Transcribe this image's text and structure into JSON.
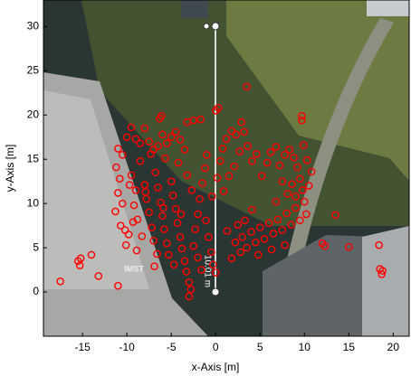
{
  "chart_data": {
    "type": "scatter",
    "x_label": "x-Axis [m]",
    "y_label": "y-Axis [m]",
    "annotations": [
      "10.01 m",
      "IMST"
    ],
    "xlim": [
      -19.4,
      21.8
    ],
    "ylim": [
      -5,
      33
    ],
    "xticks": [
      -15,
      -10,
      -5,
      0,
      5,
      10,
      15,
      20
    ],
    "yticks": [
      0,
      5,
      10,
      15,
      20,
      25,
      30
    ],
    "series": [
      {
        "color": "#ff0000",
        "x": [
          -11,
          -10.5,
          -10,
          -9.5,
          -9,
          -8.5,
          -8,
          -7.5,
          -7,
          -6.5,
          -6,
          -5.5,
          -5,
          -4.5,
          -4,
          -3.5,
          -11.2,
          -10.8,
          -11,
          -10.5,
          -11.3,
          -10.7,
          -10.2,
          -9.8,
          -9.5,
          -9,
          -9.2,
          -8.8,
          -8.5,
          -8,
          -7.8,
          -7.5,
          -7.2,
          -7,
          -6.8,
          -6.5,
          -6.2,
          -6,
          -5.8,
          -5.5,
          -5.3,
          -5,
          -4.8,
          -4.5,
          -4.3,
          -4,
          -3.8,
          -3.5,
          -3.3,
          -3,
          -2.8,
          -3,
          -2.5,
          -2.3,
          -2,
          -1.8,
          -1.5,
          -1.2,
          -1,
          -0.8,
          -0.5,
          -0.3,
          0,
          -2,
          -1.6,
          -2.7,
          -3.2,
          -4.2,
          -5.7,
          -7.3,
          -8.3,
          -6.6,
          -4.7,
          -3.9,
          -5.9,
          -7.9,
          -9.7,
          -1.1,
          -0.4,
          0.2,
          0.5,
          0.8,
          1.2,
          1.8,
          2.3,
          2.7,
          2.1,
          1.5,
          0.9,
          -6.9,
          -8.9,
          -10.1,
          -9.3,
          3,
          3.5,
          4,
          4.5,
          5,
          5.5,
          6,
          6.5,
          7,
          7.5,
          8,
          8.5,
          9,
          9.5,
          10,
          10.2,
          9.8,
          9.5,
          9.2,
          8.8,
          8.3,
          7.8,
          7.2,
          6.8,
          6.2,
          5.8,
          5.2,
          4.6,
          4.1,
          3.6,
          3.2,
          2.9,
          8.6,
          9,
          8.1,
          7.5,
          10.5,
          10.8,
          10.3,
          9.9,
          4.8,
          6.3,
          7.8,
          2.8,
          2.5,
          3.3,
          2.2,
          1.8,
          1.3,
          6.8,
          4.1,
          -17.5,
          -15.5,
          -15.3,
          -14,
          -13.2,
          -11,
          -15.2,
          12,
          12.3,
          13.5,
          15,
          18.4,
          18.7,
          18.5,
          18.8,
          3.5,
          9.7,
          9.7,
          0.3,
          0,
          -6.1,
          -6.3,
          -1.7,
          -2.5,
          -3.2
        ],
        "values": [
          16.2,
          15.5,
          17.5,
          18.6,
          17.3,
          16.8,
          18.5,
          17,
          16.1,
          16.5,
          17.8,
          16.8,
          17.5,
          18.1,
          17.2,
          16.1,
          14.1,
          12.8,
          11.2,
          10,
          9.1,
          7.5,
          7,
          6.5,
          13.2,
          11.5,
          9.8,
          8.2,
          14.8,
          12.1,
          10.5,
          9,
          7.3,
          5.8,
          13.5,
          11.8,
          10.1,
          8.6,
          7.1,
          5.5,
          4.2,
          12.5,
          10.9,
          9.4,
          7.8,
          6.2,
          4.9,
          3.5,
          2.3,
          1.1,
          0.3,
          -0.5,
          5.2,
          7.1,
          8.8,
          10.5,
          12.3,
          14,
          15.5,
          6.2,
          4.5,
          3.1,
          2.2,
          3.9,
          2.5,
          11.5,
          13.2,
          14.6,
          15.1,
          15.6,
          6.3,
          4.3,
          3.1,
          8.8,
          9.5,
          11.3,
          12.1,
          8.1,
          10.8,
          12.9,
          14.8,
          16.2,
          17.3,
          18.2,
          17.8,
          15.9,
          14.2,
          13.1,
          11.4,
          2.9,
          4.7,
          5.3,
          7.9,
          6.2,
          5,
          6.8,
          5.6,
          7.3,
          6,
          7.8,
          6.6,
          8.2,
          7,
          8.9,
          7.6,
          9.5,
          8.1,
          10.2,
          8.8,
          11.5,
          12.8,
          14.1,
          15.2,
          16.1,
          15.5,
          14.3,
          16.4,
          15.8,
          14.6,
          13.1,
          15.6,
          14.8,
          16.5,
          18.1,
          19.2,
          12.2,
          10.8,
          11.1,
          12.5,
          12,
          13.6,
          14.9,
          16.6,
          4.2,
          4.8,
          5.3,
          4.5,
          7.6,
          8.1,
          5.6,
          3.8,
          6.9,
          10.2,
          9.3,
          1.2,
          3.5,
          3,
          4.2,
          1.8,
          0.7,
          3.8,
          5.5,
          5.2,
          8.7,
          5.1,
          5.3,
          2,
          2.6,
          2.4,
          23.2,
          19.9,
          19.4,
          20.8,
          20.5,
          19.9,
          19.6,
          19.5,
          19.4,
          19.2
        ]
      }
    ]
  }
}
